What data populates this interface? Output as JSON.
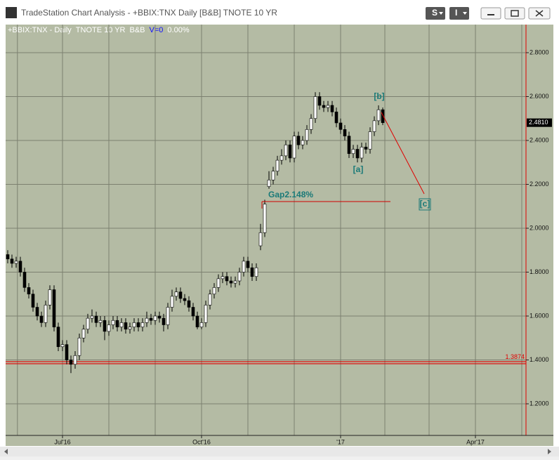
{
  "window": {
    "title": "TradeStation Chart Analysis - +BBIX:TNX Daily [B&B] TNOTE 10 YR",
    "button_s": "S",
    "button_i": "I"
  },
  "chart_data": {
    "type": "candlestick",
    "header": [
      "+BBIX:TNX - Daily",
      "TNOTE 10 YR",
      "B&B",
      "V=0",
      "0.00%"
    ],
    "open": [
      1.88,
      1.86,
      1.84,
      1.85,
      1.8,
      1.73,
      1.7,
      1.64,
      1.6,
      1.57,
      1.65,
      1.72,
      1.55,
      1.46,
      1.47,
      1.4,
      1.38,
      1.42,
      1.5,
      1.54,
      1.59,
      1.6,
      1.57,
      1.58,
      1.53,
      1.56,
      1.58,
      1.55,
      1.57,
      1.54,
      1.55,
      1.57,
      1.55,
      1.57,
      1.59,
      1.58,
      1.6,
      1.59,
      1.56,
      1.64,
      1.69,
      1.71,
      1.68,
      1.67,
      1.64,
      1.6,
      1.55,
      1.57,
      1.65,
      1.7,
      1.73,
      1.77,
      1.78,
      1.76,
      1.75,
      1.76,
      1.8,
      1.85,
      1.82,
      1.78,
      1.92,
      1.98,
      2.19,
      2.22,
      2.26,
      2.31,
      2.33,
      2.38,
      2.32,
      2.42,
      2.38,
      2.4,
      2.45,
      2.5,
      2.6,
      2.56,
      2.55,
      2.56,
      2.53,
      2.48,
      2.45,
      2.42,
      2.34,
      2.36,
      2.32,
      2.37,
      2.36,
      2.44,
      2.49,
      2.54
    ],
    "high": [
      1.9,
      1.88,
      1.87,
      1.87,
      1.82,
      1.75,
      1.72,
      1.66,
      1.62,
      1.67,
      1.74,
      1.74,
      1.57,
      1.49,
      1.49,
      1.42,
      1.44,
      1.52,
      1.56,
      1.61,
      1.63,
      1.62,
      1.6,
      1.6,
      1.58,
      1.6,
      1.6,
      1.59,
      1.59,
      1.57,
      1.59,
      1.59,
      1.59,
      1.62,
      1.61,
      1.62,
      1.62,
      1.61,
      1.66,
      1.72,
      1.73,
      1.73,
      1.7,
      1.69,
      1.66,
      1.62,
      1.59,
      1.67,
      1.72,
      1.75,
      1.79,
      1.8,
      1.8,
      1.78,
      1.78,
      1.82,
      1.87,
      1.87,
      1.84,
      1.84,
      2.02,
      2.13,
      2.26,
      2.28,
      2.33,
      2.36,
      2.4,
      2.4,
      2.44,
      2.44,
      2.42,
      2.47,
      2.52,
      2.62,
      2.62,
      2.58,
      2.58,
      2.58,
      2.55,
      2.5,
      2.47,
      2.44,
      2.38,
      2.38,
      2.39,
      2.39,
      2.46,
      2.51,
      2.56,
      2.55
    ],
    "low": [
      1.84,
      1.82,
      1.82,
      1.78,
      1.71,
      1.68,
      1.62,
      1.58,
      1.55,
      1.55,
      1.63,
      1.53,
      1.44,
      1.44,
      1.38,
      1.34,
      1.36,
      1.4,
      1.48,
      1.52,
      1.57,
      1.55,
      1.55,
      1.49,
      1.51,
      1.54,
      1.53,
      1.53,
      1.52,
      1.52,
      1.53,
      1.53,
      1.53,
      1.55,
      1.56,
      1.56,
      1.57,
      1.53,
      1.54,
      1.62,
      1.67,
      1.66,
      1.65,
      1.62,
      1.58,
      1.54,
      1.54,
      1.55,
      1.63,
      1.68,
      1.71,
      1.75,
      1.74,
      1.73,
      1.73,
      1.74,
      1.78,
      1.8,
      1.76,
      1.76,
      1.9,
      1.96,
      2.18,
      2.2,
      2.24,
      2.29,
      2.31,
      2.3,
      2.3,
      2.36,
      2.36,
      2.38,
      2.43,
      2.48,
      2.54,
      2.53,
      2.53,
      2.51,
      2.46,
      2.43,
      2.4,
      2.32,
      2.32,
      2.3,
      2.3,
      2.34,
      2.34,
      2.42,
      2.47,
      2.47
    ],
    "close": [
      1.86,
      1.84,
      1.85,
      1.8,
      1.73,
      1.7,
      1.64,
      1.6,
      1.57,
      1.65,
      1.72,
      1.55,
      1.46,
      1.47,
      1.4,
      1.38,
      1.42,
      1.5,
      1.54,
      1.59,
      1.6,
      1.57,
      1.58,
      1.53,
      1.56,
      1.58,
      1.55,
      1.57,
      1.54,
      1.55,
      1.57,
      1.55,
      1.57,
      1.59,
      1.58,
      1.6,
      1.59,
      1.56,
      1.64,
      1.69,
      1.71,
      1.68,
      1.67,
      1.64,
      1.6,
      1.55,
      1.57,
      1.65,
      1.7,
      1.73,
      1.77,
      1.78,
      1.76,
      1.75,
      1.76,
      1.8,
      1.85,
      1.82,
      1.78,
      1.82,
      1.98,
      2.11,
      2.22,
      2.26,
      2.31,
      2.33,
      2.38,
      2.32,
      2.42,
      2.38,
      2.4,
      2.45,
      2.5,
      2.6,
      2.56,
      2.55,
      2.56,
      2.53,
      2.48,
      2.45,
      2.42,
      2.34,
      2.36,
      2.32,
      2.37,
      2.36,
      2.44,
      2.49,
      2.54,
      2.481
    ],
    "xlim": [
      -0.5,
      123
    ],
    "xticks": [
      {
        "value": 13,
        "label": "Jul'16"
      },
      {
        "value": 46,
        "label": "Oct'16"
      },
      {
        "value": 79,
        "label": "'17"
      },
      {
        "value": 111,
        "label": "Apr'17"
      }
    ],
    "xgrid": [
      2.3,
      13,
      24,
      35,
      46,
      57,
      68,
      79,
      89.5,
      100,
      111,
      122
    ],
    "ylim": [
      1.056,
      2.928
    ],
    "yticks": [
      {
        "value": 1.2,
        "label": "1.2000"
      },
      {
        "value": 1.4,
        "label": "1.4000"
      },
      {
        "value": 1.6,
        "label": "1.6000"
      },
      {
        "value": 1.8,
        "label": "1.8000"
      },
      {
        "value": 2.0,
        "label": "2.0000"
      },
      {
        "value": 2.2,
        "label": "2.2000"
      },
      {
        "value": 2.4,
        "label": "2.4000"
      },
      {
        "value": 2.6,
        "label": "2.6000"
      },
      {
        "value": 2.8,
        "label": "2.8000"
      }
    ],
    "grid": true,
    "hline": {
      "value": 1.3874,
      "label": "1.3874",
      "color": "#e00000"
    },
    "last_price": {
      "value": 2.481,
      "label": "2.4810"
    },
    "annotations": {
      "gap": "Gap2.148%",
      "a": "[a]",
      "b": "[b]",
      "c": "[c]"
    },
    "up_color": "#ffffff",
    "down_color": "#000000",
    "background": "#b4bba4"
  }
}
